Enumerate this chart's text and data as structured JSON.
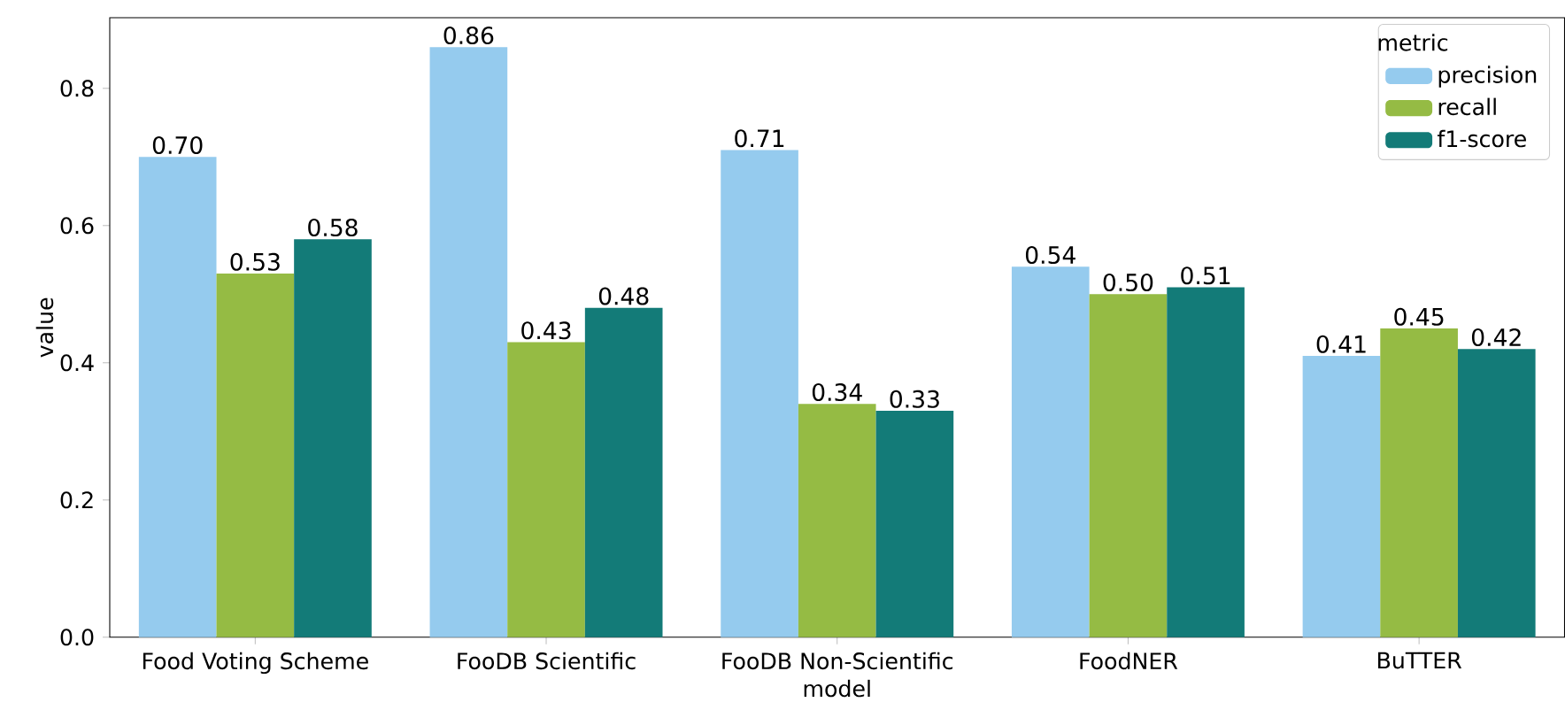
{
  "chart_data": {
    "type": "bar",
    "xlabel": "model",
    "ylabel": "value",
    "legend_title": "metric",
    "legend": "top right",
    "categories": [
      "Food Voting Scheme",
      "FooDB Scientific",
      "FooDB Non-Scientific",
      "FoodNER",
      "BuTTER"
    ],
    "series": [
      {
        "name": "precision",
        "color": "#95cbee",
        "values": [
          0.7,
          0.86,
          0.71,
          0.54,
          0.41
        ],
        "value_labels": [
          "0.70",
          "0.86",
          "0.71",
          "0.54",
          "0.41"
        ]
      },
      {
        "name": "recall",
        "color": "#95bb44",
        "values": [
          0.53,
          0.43,
          0.34,
          0.5,
          0.45
        ],
        "value_labels": [
          "0.53",
          "0.43",
          "0.34",
          "0.50",
          "0.45"
        ]
      },
      {
        "name": "f1-score",
        "color": "#137b78",
        "values": [
          0.58,
          0.48,
          0.33,
          0.51,
          0.42
        ],
        "value_labels": [
          "0.58",
          "0.48",
          "0.33",
          "0.51",
          "0.42"
        ]
      }
    ],
    "ylim": [
      0,
      0.903
    ],
    "yticks": [
      {
        "value": 0,
        "label": "0.0"
      },
      {
        "value": 0.2,
        "label": "0.2"
      },
      {
        "value": 0.4,
        "label": "0.4"
      },
      {
        "value": 0.6,
        "label": "0.6"
      },
      {
        "value": 0.8,
        "label": "0.8"
      }
    ],
    "grid": false
  }
}
